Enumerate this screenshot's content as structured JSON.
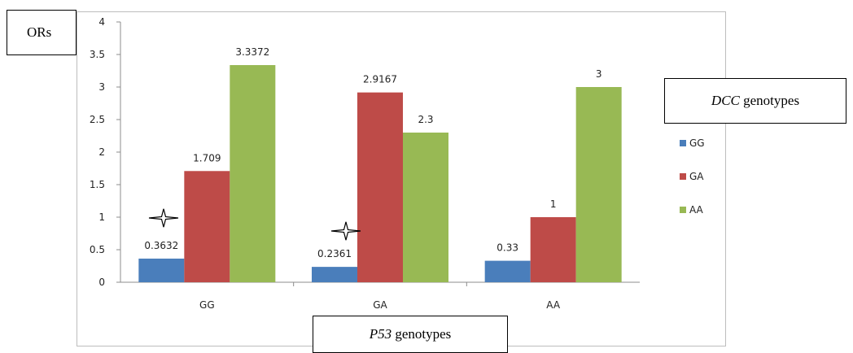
{
  "chart_data": {
    "type": "bar",
    "categories": [
      "GG",
      "GA",
      "AA"
    ],
    "series": [
      {
        "name": "GG",
        "values": [
          0.3632,
          0.2361,
          0.33
        ],
        "color": "#4a7ebb"
      },
      {
        "name": "GA",
        "values": [
          1.709,
          2.9167,
          1
        ],
        "color": "#be4b48"
      },
      {
        "name": "AA",
        "values": [
          3.3372,
          2.3,
          3
        ],
        "color": "#98b954"
      }
    ],
    "value_labels": [
      [
        "0.3632",
        "0.2361",
        "0.33"
      ],
      [
        "1.709",
        "2.9167",
        "1"
      ],
      [
        "3.3372",
        "2.3",
        "3"
      ]
    ],
    "ylabel": "ORs",
    "xlabel_italic": "P53",
    "xlabel_rest": " genotypes",
    "legend_title_italic": "DCC",
    "legend_title_rest": " genotypes",
    "ylim": [
      0,
      4
    ],
    "yticks": [
      "0",
      "0.5",
      "1",
      "1.5",
      "2",
      "2.5",
      "3",
      "3.5",
      "4"
    ],
    "grid": false,
    "legend_position": "right",
    "annotations": [
      {
        "symbol": "star-outline",
        "near": "GG/GG"
      },
      {
        "symbol": "star-outline",
        "near": "GA/GG"
      }
    ]
  }
}
